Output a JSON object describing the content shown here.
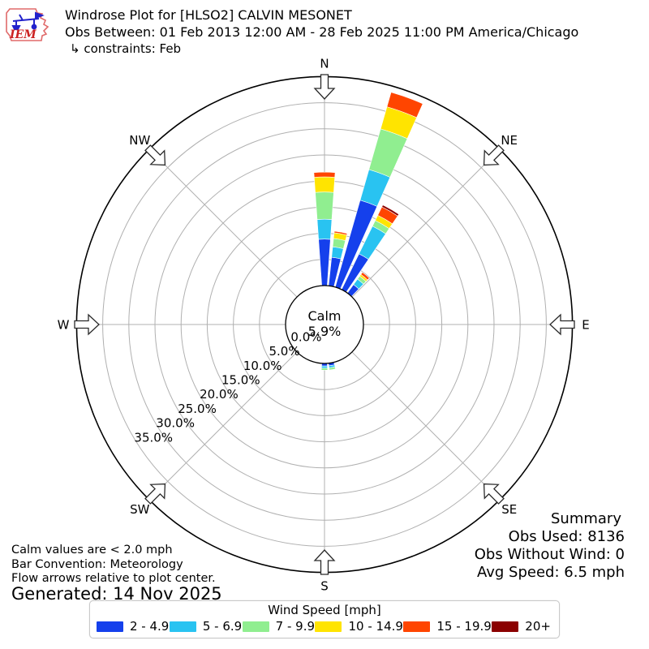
{
  "header": {
    "logo_text": "IEM",
    "title": "Windrose Plot for [HLSO2] CALVIN MESONET",
    "subtitle": "Obs Between: 01 Feb 2013 12:00 AM - 28 Feb 2025 11:00 PM America/Chicago",
    "constraints": "↳ constraints: Feb"
  },
  "chart_data": {
    "type": "windrose",
    "units": "mph",
    "bar_convention": "Meteorology",
    "calm_label": "Calm",
    "calm_percent": "5.9%",
    "rmax_percent": 40,
    "radial_ticks": [
      "0.0%",
      "5.0%",
      "10.0%",
      "15.0%",
      "20.0%",
      "25.0%",
      "30.0%",
      "35.0%"
    ],
    "radial_tick_values": [
      0,
      5,
      10,
      15,
      20,
      25,
      30,
      35
    ],
    "compass_labels": [
      "N",
      "NE",
      "E",
      "SE",
      "S",
      "SW",
      "W",
      "NW"
    ],
    "compass_bearings": [
      0,
      45,
      90,
      135,
      180,
      225,
      270,
      315
    ],
    "grid_color": "#b0b0b0",
    "speed_bins": [
      {
        "label": "2 - 4.9",
        "color": "#1540ec"
      },
      {
        "label": "5 - 6.9",
        "color": "#29c3f1"
      },
      {
        "label": "7 - 9.9",
        "color": "#90ee90"
      },
      {
        "label": "10 - 14.9",
        "color": "#ffe400"
      },
      {
        "label": "15 - 19.9",
        "color": "#ff4500"
      },
      {
        "label": "20+",
        "color": "#8b0000"
      }
    ],
    "directions": [
      {
        "bearing": 0,
        "values": [
          8.9,
          3.8,
          5.2,
          2.9,
          0.9,
          0
        ]
      },
      {
        "bearing": 10,
        "values": [
          5.5,
          2.0,
          1.6,
          1.1,
          0.3,
          0
        ]
      },
      {
        "bearing": 20,
        "values": [
          17.3,
          6.1,
          8.1,
          4.4,
          2.9,
          0
        ]
      },
      {
        "bearing": 30,
        "values": [
          7.6,
          5.9,
          1.2,
          1.1,
          1.8,
          0.4
        ]
      },
      {
        "bearing": 40,
        "values": [
          2.0,
          1.3,
          0.7,
          0.4,
          0.5,
          0
        ]
      },
      {
        "bearing": 170,
        "values": [
          0.5,
          0.4,
          0.4,
          0,
          0,
          0
        ]
      },
      {
        "bearing": 180,
        "values": [
          0.5,
          0.4,
          0.4,
          0,
          0,
          0
        ]
      }
    ],
    "legend_title": "Wind Speed [mph]"
  },
  "summary": {
    "title": "Summary",
    "obs_used": "Obs Used: 8136",
    "obs_without_wind": "Obs Without Wind: 0",
    "avg_speed": "Avg Speed: 6.5 mph"
  },
  "footnotes": {
    "calm": "Calm values are < 2.0 mph",
    "convention": "Bar Convention: Meteorology",
    "arrows": "Flow arrows relative to plot center.",
    "generated": "Generated: 14 Nov 2025"
  }
}
